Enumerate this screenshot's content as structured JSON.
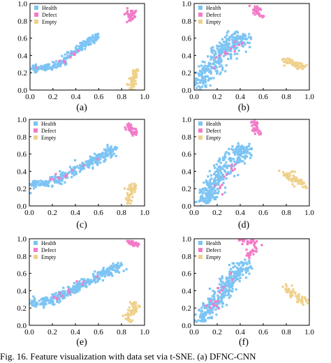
{
  "chart_data": [
    {
      "panel_label": "(a)",
      "type": "scatter",
      "xlim": [
        0.0,
        1.0
      ],
      "ylim": [
        0.0,
        1.0
      ],
      "xticks": [
        "0.0",
        "0.2",
        "0.4",
        "0.6",
        "0.8",
        "1.0"
      ],
      "yticks": [
        "0.0",
        "0.2",
        "0.4",
        "0.6",
        "0.8",
        "1.0"
      ],
      "legend": {
        "placement": "top-left",
        "entries": [
          "Health",
          "Defect",
          "Empty"
        ]
      },
      "series": [
        {
          "name": "Health",
          "color": "#7cc4f4",
          "clusters": [
            {
              "points": [
                [
                  0.02,
                  0.25
                ],
                [
                  0.1,
                  0.25
                ],
                [
                  0.2,
                  0.27
                ],
                [
                  0.3,
                  0.33
                ],
                [
                  0.4,
                  0.45
                ],
                [
                  0.5,
                  0.55
                ],
                [
                  0.6,
                  0.63
                ]
              ],
              "width": 0.035,
              "count": 230
            }
          ]
        },
        {
          "name": "Defect",
          "color": "#f27bc8",
          "clusters": [
            {
              "points": [
                [
                  0.88,
                  0.93
                ],
                [
                  0.88,
                  0.81
                ]
              ],
              "width": 0.03,
              "count": 40
            },
            {
              "points": [
                [
                  0.05,
                  0.26
                ],
                [
                  0.3,
                  0.33
                ],
                [
                  0.48,
                  0.53
                ]
              ],
              "width": 0.03,
              "count": 10
            }
          ]
        },
        {
          "name": "Empty",
          "color": "#efd08a",
          "clusters": [
            {
              "points": [
                [
                  0.92,
                  0.24
                ],
                [
                  0.88,
                  0.02
                ]
              ],
              "width": 0.035,
              "count": 55
            }
          ]
        }
      ]
    },
    {
      "panel_label": "(b)",
      "type": "scatter",
      "xlim": [
        0.0,
        1.0
      ],
      "ylim": [
        0.0,
        1.0
      ],
      "xticks": [
        "0.0",
        "0.2",
        "0.4",
        "0.6",
        "0.8",
        "1.0"
      ],
      "yticks": [
        "0.0",
        "0.2",
        "0.4",
        "0.6",
        "0.8",
        "1.0"
      ],
      "legend": {
        "placement": "top-left",
        "entries": [
          "Health",
          "Defect",
          "Empty"
        ]
      },
      "series": [
        {
          "name": "Health",
          "color": "#7cc4f4",
          "clusters": [
            {
              "points": [
                [
                  0.03,
                  0.03
                ],
                [
                  0.12,
                  0.22
                ],
                [
                  0.22,
                  0.4
                ],
                [
                  0.32,
                  0.55
                ],
                [
                  0.4,
                  0.6
                ]
              ],
              "width": 0.09,
              "count": 330
            }
          ]
        },
        {
          "name": "Defect",
          "color": "#f27bc8",
          "clusters": [
            {
              "points": [
                [
                  0.52,
                  0.97
                ],
                [
                  0.58,
                  0.85
                ]
              ],
              "width": 0.035,
              "count": 40
            },
            {
              "points": [
                [
                  0.15,
                  0.25
                ],
                [
                  0.3,
                  0.45
                ],
                [
                  0.38,
                  0.55
                ]
              ],
              "width": 0.05,
              "count": 12
            }
          ]
        },
        {
          "name": "Empty",
          "color": "#efd08a",
          "clusters": [
            {
              "points": [
                [
                  0.78,
                  0.34
                ],
                [
                  0.88,
                  0.3
                ],
                [
                  0.96,
                  0.27
                ]
              ],
              "width": 0.04,
              "count": 55
            }
          ]
        }
      ]
    },
    {
      "panel_label": "(c)",
      "type": "scatter",
      "xlim": [
        0.0,
        1.0
      ],
      "ylim": [
        0.0,
        1.0
      ],
      "xticks": [
        "0.0",
        "0.2",
        "0.4",
        "0.6",
        "0.8",
        "1.0"
      ],
      "yticks": [
        "0.0",
        "0.2",
        "0.4",
        "0.6",
        "0.8",
        "1.0"
      ],
      "legend": {
        "placement": "top-left",
        "entries": [
          "Health",
          "Defect",
          "Empty"
        ]
      },
      "series": [
        {
          "name": "Health",
          "color": "#7cc4f4",
          "clusters": [
            {
              "points": [
                [
                  0.02,
                  0.25
                ],
                [
                  0.2,
                  0.27
                ],
                [
                  0.35,
                  0.38
                ],
                [
                  0.5,
                  0.48
                ],
                [
                  0.62,
                  0.57
                ],
                [
                  0.74,
                  0.66
                ]
              ],
              "width": 0.05,
              "count": 300
            }
          ]
        },
        {
          "name": "Defect",
          "color": "#f27bc8",
          "clusters": [
            {
              "points": [
                [
                  0.86,
                  0.93
                ],
                [
                  0.92,
                  0.82
                ]
              ],
              "width": 0.03,
              "count": 40
            },
            {
              "points": [
                [
                  0.1,
                  0.26
                ],
                [
                  0.3,
                  0.35
                ],
                [
                  0.52,
                  0.5
                ],
                [
                  0.68,
                  0.62
                ]
              ],
              "width": 0.04,
              "count": 12
            }
          ]
        },
        {
          "name": "Empty",
          "color": "#efd08a",
          "clusters": [
            {
              "points": [
                [
                  0.9,
                  0.26
                ],
                [
                  0.86,
                  0.03
                ]
              ],
              "width": 0.035,
              "count": 55
            }
          ]
        }
      ]
    },
    {
      "panel_label": "(d)",
      "type": "scatter",
      "xlim": [
        0.0,
        1.0
      ],
      "ylim": [
        0.0,
        1.0
      ],
      "xticks": [
        "0.0",
        "0.2",
        "0.4",
        "0.6",
        "0.8",
        "1.0"
      ],
      "yticks": [
        "0.0",
        "0.2",
        "0.4",
        "0.6",
        "0.8",
        "1.0"
      ],
      "legend": {
        "placement": "top-left",
        "entries": [
          "Health",
          "Defect",
          "Empty"
        ]
      },
      "series": [
        {
          "name": "Health",
          "color": "#7cc4f4",
          "clusters": [
            {
              "points": [
                [
                  0.06,
                  0.04
                ],
                [
                  0.15,
                  0.2
                ],
                [
                  0.25,
                  0.4
                ],
                [
                  0.35,
                  0.58
                ],
                [
                  0.45,
                  0.68
                ]
              ],
              "width": 0.08,
              "count": 330
            }
          ]
        },
        {
          "name": "Defect",
          "color": "#f27bc8",
          "clusters": [
            {
              "points": [
                [
                  0.52,
                  0.98
                ],
                [
                  0.55,
                  0.85
                ]
              ],
              "width": 0.035,
              "count": 40
            },
            {
              "points": [
                [
                  0.15,
                  0.1
                ],
                [
                  0.25,
                  0.3
                ],
                [
                  0.35,
                  0.5
                ]
              ],
              "width": 0.05,
              "count": 12
            }
          ]
        },
        {
          "name": "Empty",
          "color": "#efd08a",
          "clusters": [
            {
              "points": [
                [
                  0.78,
                  0.38
                ],
                [
                  0.88,
                  0.3
                ],
                [
                  0.96,
                  0.24
                ]
              ],
              "width": 0.04,
              "count": 55
            }
          ]
        }
      ]
    },
    {
      "panel_label": "(e)",
      "type": "scatter",
      "xlim": [
        0.0,
        1.0
      ],
      "ylim": [
        0.0,
        1.0
      ],
      "xticks": [
        "0.0",
        "0.2",
        "0.4",
        "0.6",
        "0.8",
        "1.0"
      ],
      "yticks": [
        "0.0",
        "0.2",
        "0.4",
        "0.6",
        "0.8",
        "1.0"
      ],
      "legend": {
        "placement": "top-left",
        "entries": [
          "Health",
          "Defect",
          "Empty"
        ]
      },
      "series": [
        {
          "name": "Health",
          "color": "#7cc4f4",
          "clusters": [
            {
              "points": [
                [
                  0.02,
                  0.25
                ],
                [
                  0.2,
                  0.29
                ],
                [
                  0.35,
                  0.4
                ],
                [
                  0.5,
                  0.5
                ],
                [
                  0.65,
                  0.6
                ],
                [
                  0.78,
                  0.68
                ]
              ],
              "width": 0.05,
              "count": 320
            }
          ]
        },
        {
          "name": "Defect",
          "color": "#f27bc8",
          "clusters": [
            {
              "points": [
                [
                  0.85,
                  0.96
                ],
                [
                  0.95,
                  0.94
                ]
              ],
              "width": 0.025,
              "count": 40
            },
            {
              "points": [
                [
                  0.2,
                  0.28
                ],
                [
                  0.42,
                  0.45
                ],
                [
                  0.62,
                  0.58
                ]
              ],
              "width": 0.04,
              "count": 12
            }
          ]
        },
        {
          "name": "Empty",
          "color": "#efd08a",
          "clusters": [
            {
              "points": [
                [
                  0.92,
                  0.25
                ],
                [
                  0.86,
                  0.05
                ]
              ],
              "width": 0.035,
              "count": 55
            }
          ]
        }
      ]
    },
    {
      "panel_label": "(f)",
      "type": "scatter",
      "xlim": [
        0.0,
        1.0
      ],
      "ylim": [
        0.0,
        1.0
      ],
      "xticks": [
        "0.0",
        "0.2",
        "0.4",
        "0.6",
        "0.8",
        "1.0"
      ],
      "yticks": [
        "0.0",
        "0.2",
        "0.4",
        "0.6",
        "0.8",
        "1.0"
      ],
      "legend": {
        "placement": "top-left",
        "entries": [
          "Health",
          "Defect",
          "Empty"
        ]
      },
      "series": [
        {
          "name": "Health",
          "color": "#7cc4f4",
          "clusters": [
            {
              "points": [
                [
                  0.05,
                  0.05
                ],
                [
                  0.15,
                  0.22
                ],
                [
                  0.25,
                  0.4
                ],
                [
                  0.35,
                  0.58
                ],
                [
                  0.45,
                  0.72
                ]
              ],
              "width": 0.07,
              "count": 330
            }
          ]
        },
        {
          "name": "Defect",
          "color": "#f27bc8",
          "clusters": [
            {
              "points": [
                [
                  0.4,
                  0.98
                ],
                [
                  0.55,
                  0.96
                ]
              ],
              "width": 0.03,
              "count": 30
            },
            {
              "points": [
                [
                  0.45,
                  0.8
                ],
                [
                  0.55,
                  0.88
                ]
              ],
              "width": 0.03,
              "count": 22
            },
            {
              "points": [
                [
                  0.15,
                  0.2
                ],
                [
                  0.25,
                  0.4
                ],
                [
                  0.35,
                  0.55
                ]
              ],
              "width": 0.05,
              "count": 15
            }
          ]
        },
        {
          "name": "Empty",
          "color": "#efd08a",
          "clusters": [
            {
              "points": [
                [
                  0.78,
                  0.44
                ],
                [
                  0.88,
                  0.35
                ],
                [
                  0.96,
                  0.27
                ]
              ],
              "width": 0.04,
              "count": 55
            }
          ]
        }
      ]
    }
  ],
  "caption": "Fig. 16.    Feature visualization with data set via t-SNE. (a) DFNC-CNN"
}
